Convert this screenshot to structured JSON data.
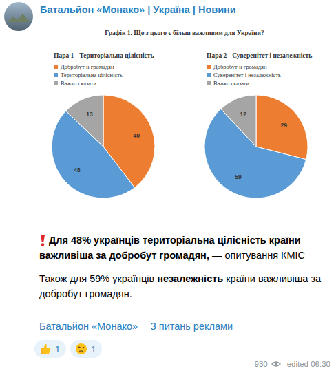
{
  "header": {
    "channel": "Батальйон «Монако» | Україна | Новини"
  },
  "figure": {
    "title": "Графік 1. Що з цього є більш важливим для України?"
  },
  "chart_data": [
    {
      "type": "pie",
      "title": "Пара 1 - Територіальна цілісність",
      "categories": [
        "Добробут її громадян",
        "Територіальна цілісність",
        "Важко сказати"
      ],
      "values": [
        40,
        48,
        13
      ],
      "colors": [
        "#ed7d31",
        "#5b9bd5",
        "#a5a5a5"
      ],
      "data_labels": true,
      "legend": "top"
    },
    {
      "type": "pie",
      "title": "Пара 2 - Суверенітет і незалежність",
      "categories": [
        "Добробут її громадян",
        "Суверенітет і незалежність",
        "Важко сказати"
      ],
      "values": [
        29,
        59,
        12
      ],
      "colors": [
        "#ed7d31",
        "#5b9bd5",
        "#a5a5a5"
      ],
      "data_labels": true,
      "legend": "top"
    }
  ],
  "post": {
    "paragraphs": [
      {
        "runs": [
          {
            "text": "Для 48% українців територіальна цілісність країни важливіша за добробут громадян,",
            "bold": true
          },
          {
            "text": " — опитування КМІС",
            "bold": false
          }
        ]
      },
      {
        "runs": [
          {
            "text": "Також для 59% українців ",
            "bold": false
          },
          {
            "text": "незалежність",
            "bold": true
          },
          {
            "text": " країни важливіша за добробут громадян.",
            "bold": false
          }
        ]
      }
    ]
  },
  "footer": {
    "links": [
      "Батальйон «Монако»",
      "З питань реклами"
    ],
    "reactions": [
      1,
      1
    ],
    "views": 930,
    "edited": "edited 06:30"
  }
}
